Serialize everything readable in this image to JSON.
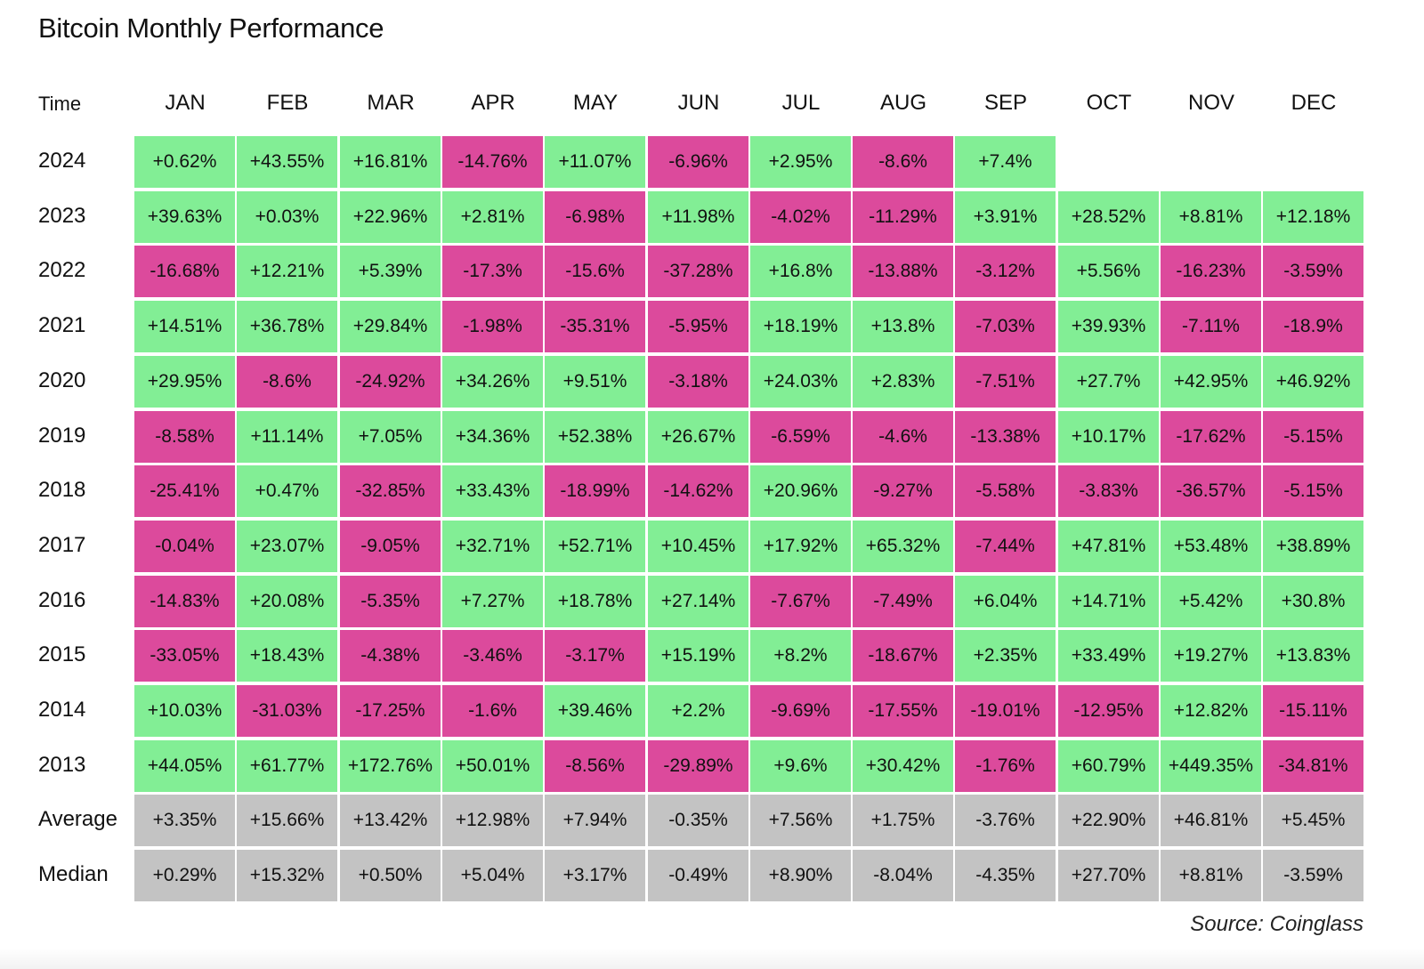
{
  "chart_data": {
    "type": "heatmap",
    "title": "Bitcoin Monthly Performance",
    "corner_label": "Time",
    "source": "Source: Coinglass",
    "colors": {
      "positive": "#82ee95",
      "negative": "#dc4a9c",
      "summary": "#c3c3c3"
    },
    "months": [
      "JAN",
      "FEB",
      "MAR",
      "APR",
      "MAY",
      "JUN",
      "JUL",
      "AUG",
      "SEP",
      "OCT",
      "NOV",
      "DEC"
    ],
    "rows": [
      {
        "label": "2024",
        "kind": "year",
        "values": [
          "+0.62%",
          "+43.55%",
          "+16.81%",
          "-14.76%",
          "+11.07%",
          "-6.96%",
          "+2.95%",
          "-8.6%",
          "+7.4%",
          "",
          "",
          ""
        ]
      },
      {
        "label": "2023",
        "kind": "year",
        "values": [
          "+39.63%",
          "+0.03%",
          "+22.96%",
          "+2.81%",
          "-6.98%",
          "+11.98%",
          "-4.02%",
          "-11.29%",
          "+3.91%",
          "+28.52%",
          "+8.81%",
          "+12.18%"
        ]
      },
      {
        "label": "2022",
        "kind": "year",
        "values": [
          "-16.68%",
          "+12.21%",
          "+5.39%",
          "-17.3%",
          "-15.6%",
          "-37.28%",
          "+16.8%",
          "-13.88%",
          "-3.12%",
          "+5.56%",
          "-16.23%",
          "-3.59%"
        ]
      },
      {
        "label": "2021",
        "kind": "year",
        "values": [
          "+14.51%",
          "+36.78%",
          "+29.84%",
          "-1.98%",
          "-35.31%",
          "-5.95%",
          "+18.19%",
          "+13.8%",
          "-7.03%",
          "+39.93%",
          "-7.11%",
          "-18.9%"
        ]
      },
      {
        "label": "2020",
        "kind": "year",
        "values": [
          "+29.95%",
          "-8.6%",
          "-24.92%",
          "+34.26%",
          "+9.51%",
          "-3.18%",
          "+24.03%",
          "+2.83%",
          "-7.51%",
          "+27.7%",
          "+42.95%",
          "+46.92%"
        ]
      },
      {
        "label": "2019",
        "kind": "year",
        "values": [
          "-8.58%",
          "+11.14%",
          "+7.05%",
          "+34.36%",
          "+52.38%",
          "+26.67%",
          "-6.59%",
          "-4.6%",
          "-13.38%",
          "+10.17%",
          "-17.62%",
          "-5.15%"
        ]
      },
      {
        "label": "2018",
        "kind": "year",
        "values": [
          "-25.41%",
          "+0.47%",
          "-32.85%",
          "+33.43%",
          "-18.99%",
          "-14.62%",
          "+20.96%",
          "-9.27%",
          "-5.58%",
          "-3.83%",
          "-36.57%",
          "-5.15%"
        ]
      },
      {
        "label": "2017",
        "kind": "year",
        "values": [
          "-0.04%",
          "+23.07%",
          "-9.05%",
          "+32.71%",
          "+52.71%",
          "+10.45%",
          "+17.92%",
          "+65.32%",
          "-7.44%",
          "+47.81%",
          "+53.48%",
          "+38.89%"
        ]
      },
      {
        "label": "2016",
        "kind": "year",
        "values": [
          "-14.83%",
          "+20.08%",
          "-5.35%",
          "+7.27%",
          "+18.78%",
          "+27.14%",
          "-7.67%",
          "-7.49%",
          "+6.04%",
          "+14.71%",
          "+5.42%",
          "+30.8%"
        ]
      },
      {
        "label": "2015",
        "kind": "year",
        "values": [
          "-33.05%",
          "+18.43%",
          "-4.38%",
          "-3.46%",
          "-3.17%",
          "+15.19%",
          "+8.2%",
          "-18.67%",
          "+2.35%",
          "+33.49%",
          "+19.27%",
          "+13.83%"
        ]
      },
      {
        "label": "2014",
        "kind": "year",
        "values": [
          "+10.03%",
          "-31.03%",
          "-17.25%",
          "-1.6%",
          "+39.46%",
          "+2.2%",
          "-9.69%",
          "-17.55%",
          "-19.01%",
          "-12.95%",
          "+12.82%",
          "-15.11%"
        ]
      },
      {
        "label": "2013",
        "kind": "year",
        "values": [
          "+44.05%",
          "+61.77%",
          "+172.76%",
          "+50.01%",
          "-8.56%",
          "-29.89%",
          "+9.6%",
          "+30.42%",
          "-1.76%",
          "+60.79%",
          "+449.35%",
          "-34.81%"
        ]
      },
      {
        "label": "Average",
        "kind": "summary",
        "values": [
          "+3.35%",
          "+15.66%",
          "+13.42%",
          "+12.98%",
          "+7.94%",
          "-0.35%",
          "+7.56%",
          "+1.75%",
          "-3.76%",
          "+22.90%",
          "+46.81%",
          "+5.45%"
        ]
      },
      {
        "label": "Median",
        "kind": "summary",
        "values": [
          "+0.29%",
          "+15.32%",
          "+0.50%",
          "+5.04%",
          "+3.17%",
          "-0.49%",
          "+8.90%",
          "-8.04%",
          "-4.35%",
          "+27.70%",
          "+8.81%",
          "-3.59%"
        ]
      }
    ]
  }
}
